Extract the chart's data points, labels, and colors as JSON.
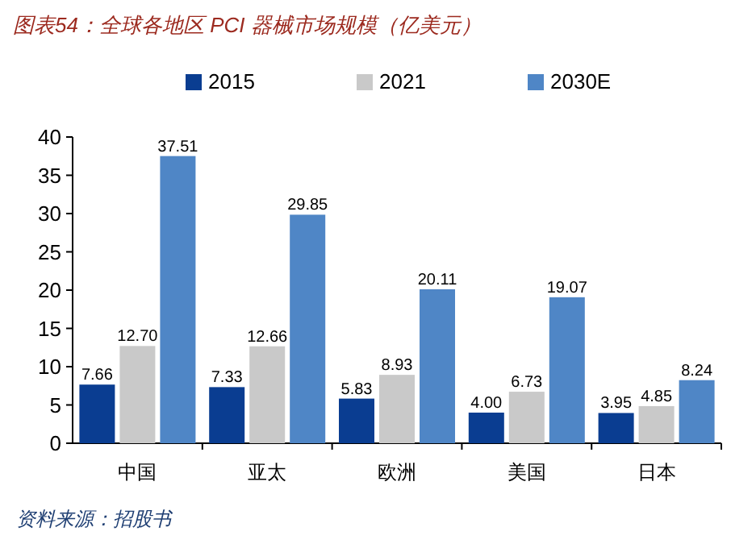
{
  "chart_data": {
    "type": "bar",
    "title": "图表54：全球各地区 PCI 器械市场规模（亿美元）",
    "categories": [
      "中国",
      "亚太",
      "欧洲",
      "美国",
      "日本"
    ],
    "series": [
      {
        "name": "2015",
        "color": "#0a3d91",
        "values": [
          7.66,
          7.33,
          5.83,
          4.0,
          3.95
        ],
        "value_labels": [
          "7.66",
          "7.33",
          "5.83",
          "4.00",
          "3.95"
        ]
      },
      {
        "name": "2021",
        "color": "#c9c9c9",
        "values": [
          12.7,
          12.66,
          8.93,
          6.73,
          4.85
        ],
        "value_labels": [
          "12.70",
          "12.66",
          "8.93",
          "6.73",
          "4.85"
        ]
      },
      {
        "name": "2030E",
        "color": "#4f86c6",
        "values": [
          37.51,
          29.85,
          20.11,
          19.07,
          8.24
        ],
        "value_labels": [
          "37.51",
          "29.85",
          "20.11",
          "19.07",
          "8.24"
        ]
      }
    ],
    "ylim": [
      0,
      40
    ],
    "yticks": [
      0,
      5,
      10,
      15,
      20,
      25,
      30,
      35,
      40
    ],
    "legend": "top",
    "grid": false,
    "annotations": [
      "资料来源：招股书"
    ]
  }
}
